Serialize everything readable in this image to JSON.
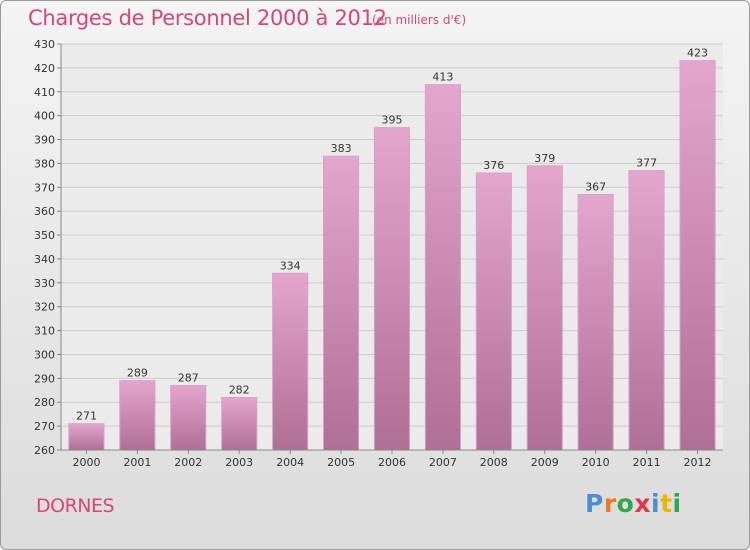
{
  "header": {
    "title": "Charges de Personnel 2000 à 2012",
    "unit_note": "(en milliers d'€)"
  },
  "footer": {
    "commune": "DORNES",
    "logo": "Proxiti"
  },
  "colors": {
    "title": "#d9457a",
    "bar_top": "#e4a6cd",
    "bar_bottom": "#b06f95",
    "logo_letters": [
      "#4a8ed6",
      "#ee7b22",
      "#2fa84f",
      "#e5344a",
      "#4a8ed6",
      "#f3b400",
      "#2fa84f"
    ]
  },
  "chart_data": {
    "type": "bar",
    "title": "Charges de Personnel 2000 à 2012",
    "subtitle": "(en milliers d'€)",
    "categories": [
      "2000",
      "2001",
      "2002",
      "2003",
      "2004",
      "2005",
      "2006",
      "2007",
      "2008",
      "2009",
      "2010",
      "2011",
      "2012"
    ],
    "values": [
      271,
      289,
      287,
      282,
      334,
      383,
      395,
      413,
      376,
      379,
      367,
      377,
      423
    ],
    "ylim": [
      260,
      430
    ],
    "ytick_step": 10,
    "grid": true,
    "data_labels": true
  }
}
